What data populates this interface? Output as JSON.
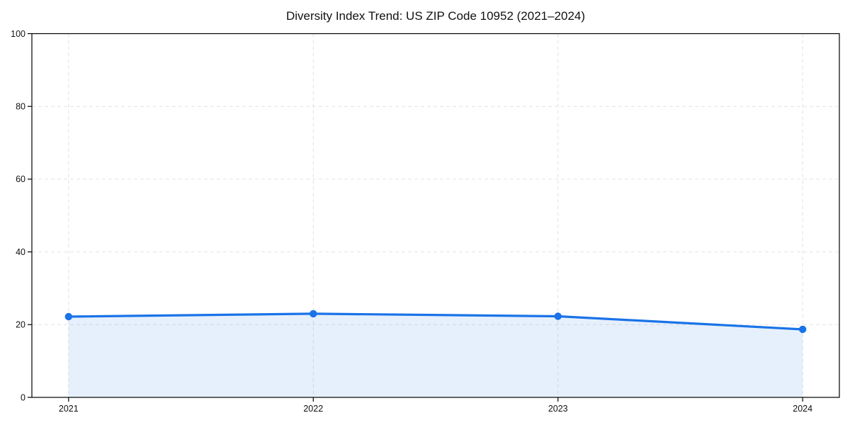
{
  "chart_data": {
    "type": "line",
    "title": "Diversity Index Trend: US ZIP Code 10952 (2021–2024)",
    "x": [
      2021,
      2022,
      2023,
      2024
    ],
    "categories": [
      "2021",
      "2022",
      "2023",
      "2024"
    ],
    "series": [
      {
        "name": "Diversity Index",
        "values": [
          22.2,
          23.0,
          22.3,
          18.7
        ]
      }
    ],
    "xlabel": "",
    "ylabel": "",
    "ylim": [
      0,
      100
    ],
    "yticks": [
      0,
      20,
      40,
      60,
      80,
      100
    ],
    "grid": true,
    "grid_style": "dashed",
    "legend": "none",
    "area_fill": true,
    "marker": "circle",
    "colors": {
      "line": "#1a73e8",
      "area_fill": "#1a73e8",
      "area_fill_opacity": 0.11,
      "grid": "#e2e2e2",
      "spine": "#000000",
      "text": "#111111",
      "background": "#ffffff"
    }
  }
}
